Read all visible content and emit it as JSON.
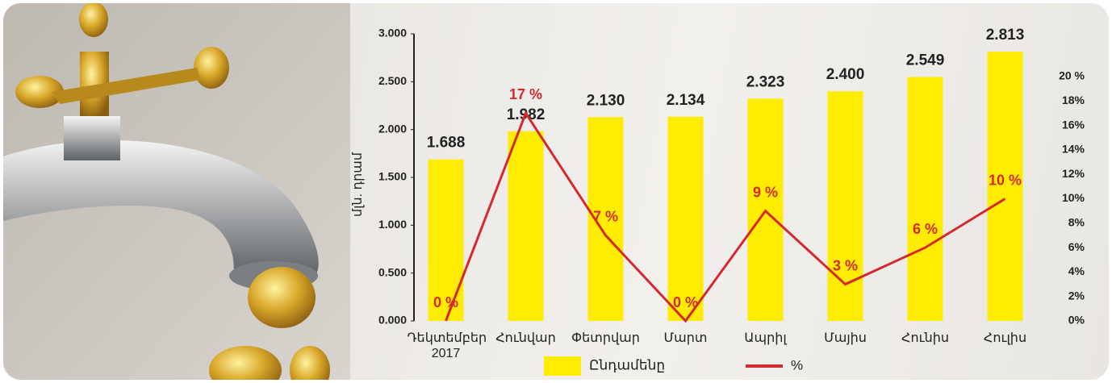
{
  "chart_data": {
    "type": "bar_line",
    "y_label": "մլն. դրամ",
    "categories": [
      "Դեկտեմբեր 2017",
      "Հունվար",
      "Փետրվար",
      "Մարտ",
      "Ապրիլ",
      "Մայիս",
      "Հունիս",
      "Հուլիս"
    ],
    "series": [
      {
        "name": "Ընդամենը",
        "type": "bar",
        "color": "#ffec00",
        "values": [
          1688,
          1982,
          2130,
          2134,
          2323,
          2400,
          2549,
          2813
        ],
        "value_labels": [
          "1.688",
          "1.982",
          "2.130",
          "2.134",
          "2.323",
          "2.400",
          "2.549",
          "2.813"
        ]
      },
      {
        "name": "%",
        "type": "line",
        "axis": "y2",
        "color": "#d42a2f",
        "values": [
          0,
          17,
          7,
          0,
          9,
          3,
          6,
          10
        ],
        "value_labels": [
          "0 %",
          "17 %",
          "7 %",
          "0 %",
          "9 %",
          "3 %",
          "6 %",
          "10 %"
        ]
      }
    ],
    "ylim": [
      0,
      3000
    ],
    "yticks": [
      {
        "value": 0,
        "label": "0.000"
      },
      {
        "value": 500,
        "label": "0.500"
      },
      {
        "value": 1000,
        "label": "1.000"
      },
      {
        "value": 1500,
        "label": "1.500"
      },
      {
        "value": 2000,
        "label": "2.000"
      },
      {
        "value": 2500,
        "label": "2.500"
      },
      {
        "value": 3000,
        "label": "3.000"
      }
    ],
    "y2lim": [
      0,
      20
    ],
    "y2ticks": [
      {
        "value": 0,
        "label": "0%"
      },
      {
        "value": 2,
        "label": "2%"
      },
      {
        "value": 4,
        "label": "4%"
      },
      {
        "value": 6,
        "label": "6%"
      },
      {
        "value": 8,
        "label": "8%"
      },
      {
        "value": 10,
        "label": "10%"
      },
      {
        "value": 12,
        "label": "12%"
      },
      {
        "value": 14,
        "label": "14%"
      },
      {
        "value": 16,
        "label": "16%"
      },
      {
        "value": 18,
        "label": "18%"
      },
      {
        "value": 20,
        "label": "20 %"
      }
    ],
    "legend": "bottom"
  }
}
